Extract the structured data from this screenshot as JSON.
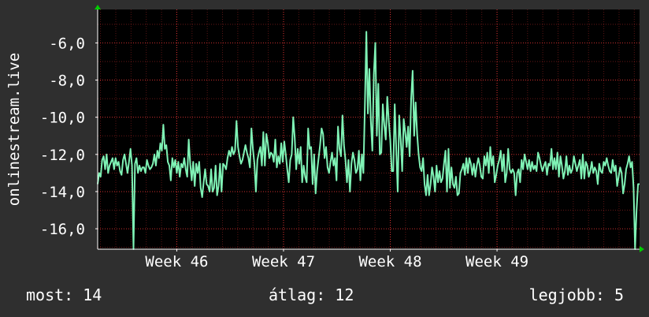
{
  "colors": {
    "background": "#2f2f2f",
    "plot_background": "#000000",
    "line": "#7ff2b5",
    "grid": "#ff3b3b",
    "axis": "#ffffff",
    "arrow": "#00cc00",
    "text": "#ffffff"
  },
  "chart_data": {
    "type": "line",
    "ylabel": "onlinestream.live",
    "ylim": [
      -17.1,
      -4.2
    ],
    "y_ticks": [
      -16,
      -14,
      -12,
      -10,
      -8,
      -6
    ],
    "y_tick_labels": [
      "-16,0",
      "-14,0",
      "-12,0",
      "-10,0",
      "-8,0",
      "-6,0"
    ],
    "xlim": [
      0,
      100
    ],
    "x_ticks": [
      14.6,
      34.3,
      54.0,
      73.7
    ],
    "x_tick_labels": [
      "Week 46",
      "Week 47",
      "Week 48",
      "Week 49"
    ],
    "grid": true,
    "series": [
      {
        "values": [
          -13.6,
          -13.0,
          -13.2,
          -12.3,
          -12.1,
          -12.8,
          -12.0,
          -13.0,
          -12.6,
          -12.4,
          -12.2,
          -12.8,
          -12.2,
          -12.6,
          -12.4,
          -12.9,
          -13.1,
          -12.3,
          -12.0,
          -12.5,
          -13.0,
          -12.4,
          -11.7,
          -12.6,
          -17.1,
          -12.5,
          -12.2,
          -13.0,
          -12.6,
          -12.9,
          -12.7,
          -12.7,
          -13.0,
          -12.3,
          -12.6,
          -12.8,
          -12.7,
          -12.5,
          -12.0,
          -12.6,
          -11.8,
          -12.2,
          -11.4,
          -11.8,
          -10.4,
          -11.7,
          -11.5,
          -12.4,
          -12.6,
          -13.4,
          -12.2,
          -12.7,
          -12.3,
          -13.0,
          -12.4,
          -13.2,
          -12.5,
          -12.7,
          -12.2,
          -12.8,
          -13.2,
          -11.2,
          -12.5,
          -13.4,
          -12.4,
          -13.7,
          -12.5,
          -13.0,
          -12.4,
          -13.8,
          -14.3,
          -13.5,
          -12.8,
          -13.6,
          -13.7,
          -14.0,
          -12.8,
          -14.0,
          -13.8,
          -12.6,
          -14.2,
          -13.7,
          -12.5,
          -14.0,
          -12.5,
          -12.6,
          -12.8,
          -12.2,
          -11.8,
          -12.1,
          -11.6,
          -12.0,
          -11.8,
          -10.2,
          -11.6,
          -12.1,
          -12.5,
          -12.3,
          -11.9,
          -11.5,
          -11.9,
          -12.2,
          -12.7,
          -10.6,
          -11.7,
          -12.5,
          -14.0,
          -12.3,
          -11.9,
          -11.6,
          -12.6,
          -10.8,
          -12.6,
          -10.9,
          -11.4,
          -12.2,
          -11.9,
          -12.0,
          -12.4,
          -11.2,
          -12.7,
          -12.1,
          -12.5,
          -11.4,
          -12.4,
          -11.3,
          -12.0,
          -12.8,
          -13.5,
          -12.3,
          -12.0,
          -10.0,
          -11.1,
          -12.8,
          -11.7,
          -12.5,
          -11.6,
          -13.5,
          -12.6,
          -13.2,
          -13.5,
          -10.6,
          -11.7,
          -11.6,
          -13.6,
          -12.0,
          -14.1,
          -12.9,
          -12.2,
          -11.5,
          -10.6,
          -10.9,
          -12.2,
          -11.6,
          -12.7,
          -13.0,
          -12.4,
          -11.9,
          -12.6,
          -12.2,
          -13.4,
          -10.5,
          -11.7,
          -12.1,
          -9.9,
          -11.5,
          -12.3,
          -13.5,
          -12.3,
          -14.0,
          -12.5,
          -11.9,
          -12.3,
          -13.0,
          -12.8,
          -11.8,
          -13.4,
          -12.0,
          -13.0,
          -9.4,
          -5.4,
          -9.8,
          -7.4,
          -10.2,
          -11.8,
          -7.7,
          -6.0,
          -11.0,
          -8.2,
          -12.0,
          -11.9,
          -9.3,
          -10.4,
          -11.2,
          -8.9,
          -10.2,
          -11.2,
          -12.9,
          -12.9,
          -9.3,
          -11.7,
          -14.0,
          -9.9,
          -11.2,
          -12.9,
          -10.1,
          -10.8,
          -11.6,
          -10.5,
          -12.1,
          -9.0,
          -7.5,
          -11.0,
          -9.2,
          -10.9,
          -12.0,
          -12.7,
          -12.9,
          -12.2,
          -13.6,
          -14.2,
          -13.1,
          -14.2,
          -13.6,
          -12.7,
          -13.2,
          -14.0,
          -12.6,
          -13.5,
          -12.9,
          -13.5,
          -13.3,
          -12.5,
          -11.8,
          -14.0,
          -11.7,
          -13.8,
          -12.7,
          -13.6,
          -13.8,
          -13.2,
          -14.2,
          -14.1,
          -13.0,
          -12.8,
          -12.5,
          -13.1,
          -12.2,
          -13.0,
          -12.2,
          -12.5,
          -13.1,
          -12.5,
          -13.2,
          -12.6,
          -12.2,
          -12.6,
          -13.2,
          -13.3,
          -12.1,
          -12.6,
          -11.9,
          -13.0,
          -11.6,
          -12.6,
          -12.1,
          -13.5,
          -13.1,
          -12.6,
          -12.3,
          -11.8,
          -12.9,
          -12.0,
          -13.5,
          -13.0,
          -11.7,
          -12.8,
          -13.0,
          -12.8,
          -13.0,
          -14.2,
          -13.0,
          -12.8,
          -13.5,
          -12.3,
          -12.8,
          -12.0,
          -12.4,
          -12.8,
          -12.3,
          -12.9,
          -12.4,
          -12.8,
          -12.6,
          -12.9,
          -11.9,
          -12.2,
          -12.6,
          -12.9,
          -12.6,
          -12.4,
          -13.1,
          -12.5,
          -12.6,
          -11.7,
          -12.8,
          -12.2,
          -12.8,
          -11.9,
          -13.2,
          -12.1,
          -12.6,
          -13.3,
          -12.9,
          -12.1,
          -13.1,
          -12.6,
          -13.0,
          -12.8,
          -12.1,
          -12.5,
          -12.9,
          -12.6,
          -12.3,
          -13.3,
          -12.0,
          -13.3,
          -12.4,
          -12.6,
          -13.2,
          -12.9,
          -12.4,
          -13.0,
          -12.7,
          -12.9,
          -13.6,
          -12.5,
          -12.9,
          -13.0,
          -12.4,
          -12.6,
          -12.2,
          -12.6,
          -12.9,
          -13.0,
          -12.3,
          -12.9,
          -12.6,
          -13.7,
          -13.2,
          -12.7,
          -13.0,
          -14.1,
          -13.6,
          -12.8,
          -12.5,
          -12.1,
          -12.7,
          -12.4,
          -13.8,
          -17.1,
          -15.0,
          -13.6,
          -13.6
        ]
      }
    ]
  },
  "footer": {
    "current": "most: 14",
    "average": "átlag: 12",
    "best": "legjobb: 5"
  }
}
